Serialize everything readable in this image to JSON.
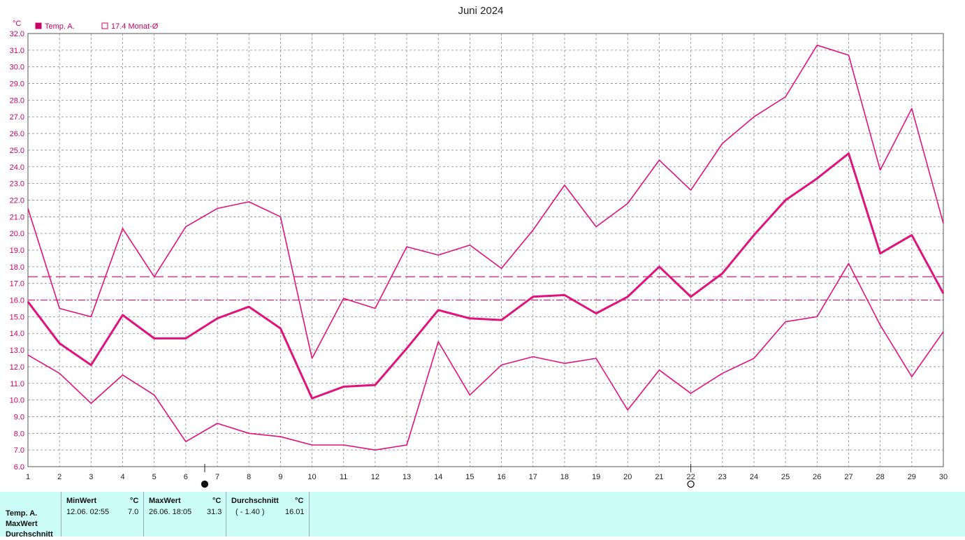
{
  "chart_data": {
    "type": "line",
    "title": "Juni 2024",
    "ylabel": "°C",
    "ylim": [
      6.0,
      32.0
    ],
    "ytick_step": 1.0,
    "x": [
      1,
      2,
      3,
      4,
      5,
      6,
      7,
      8,
      9,
      10,
      11,
      12,
      13,
      14,
      15,
      16,
      17,
      18,
      19,
      20,
      21,
      22,
      23,
      24,
      25,
      26,
      27,
      28,
      29,
      30
    ],
    "grid": true,
    "legend_position": "top-left",
    "legend": [
      {
        "label": "Temp. A.",
        "swatch": "filled"
      },
      {
        "label": "17.4 Monat-Ø",
        "swatch": "hollow"
      }
    ],
    "series": [
      {
        "role": "max",
        "values": [
          21.5,
          15.5,
          15.0,
          20.3,
          17.4,
          20.4,
          21.5,
          21.9,
          21.0,
          12.5,
          16.1,
          15.5,
          19.2,
          18.7,
          19.3,
          17.9,
          20.2,
          22.9,
          20.4,
          21.8,
          24.4,
          22.6,
          25.4,
          27.0,
          28.2,
          31.3,
          30.7,
          23.8,
          27.5,
          20.6
        ]
      },
      {
        "role": "mean",
        "values": [
          15.9,
          13.4,
          12.1,
          15.1,
          13.7,
          13.7,
          14.9,
          15.6,
          14.3,
          10.1,
          10.8,
          10.9,
          13.1,
          15.4,
          14.9,
          14.8,
          16.2,
          16.3,
          15.2,
          16.2,
          18.0,
          16.2,
          17.6,
          19.9,
          22.0,
          23.3,
          24.8,
          18.8,
          19.9,
          16.4
        ]
      },
      {
        "role": "min",
        "values": [
          12.7,
          11.6,
          9.8,
          11.5,
          10.3,
          7.5,
          8.6,
          8.0,
          7.8,
          7.3,
          7.3,
          7.0,
          7.3,
          13.5,
          10.3,
          12.1,
          12.6,
          12.2,
          12.5,
          9.4,
          11.8,
          10.4,
          11.6,
          12.5,
          14.7,
          15.0,
          18.2,
          14.5,
          11.4,
          14.1
        ]
      }
    ],
    "reference_lines": [
      {
        "label": "17.4 Monat-Ø",
        "value": 17.4,
        "style": "dashed"
      },
      {
        "value": 16.0,
        "style": "dash-dot"
      }
    ],
    "moon_phases": [
      {
        "day": 6.6,
        "phase": "new-moon"
      },
      {
        "day": 22.0,
        "phase": "full-moon"
      }
    ],
    "colors": {
      "line": "#e0127c",
      "axis_text": "#c80064",
      "grid": "#888888",
      "panel": "#ccfcf8"
    }
  },
  "stats": {
    "row_labels": [
      "Temp. A.",
      "MaxWert",
      "Durchschnitt"
    ],
    "min": {
      "header": "MinWert",
      "unit": "°C",
      "datetime": "12.06.  02:55",
      "value": "7.0"
    },
    "max": {
      "header": "MaxWert",
      "unit": "°C",
      "datetime": "26.06.  18:05",
      "value": "31.3"
    },
    "avg": {
      "header": "Durchschnitt",
      "unit": "°C",
      "deviation": "( - 1.40 )",
      "value": "16.01"
    }
  }
}
